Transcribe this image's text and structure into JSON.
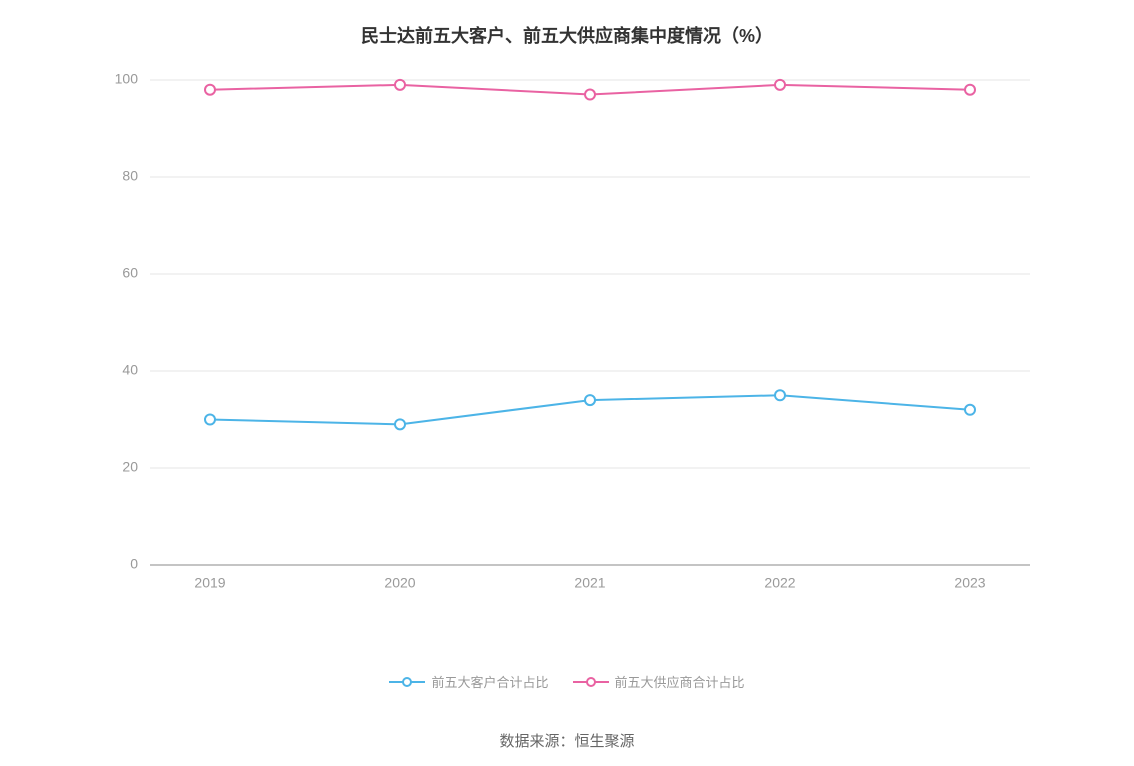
{
  "chart": {
    "type": "line",
    "title": "民士达前五大客户、前五大供应商集中度情况（%）",
    "title_fontsize": 18,
    "title_color": "#333333",
    "background_color": "#ffffff",
    "grid_color": "#e6e6e6",
    "axis_line_color": "#888888",
    "axis_label_color": "#999999",
    "axis_label_fontsize": 14,
    "ylim": [
      0,
      100
    ],
    "ytick_step": 20,
    "yticks": [
      0,
      20,
      40,
      60,
      80,
      100
    ],
    "categories": [
      "2019",
      "2020",
      "2021",
      "2022",
      "2023"
    ],
    "series": [
      {
        "name": "前五大客户合计占比",
        "color": "#4cb4e7",
        "marker_fill": "#ffffff",
        "marker_radius": 5,
        "line_width": 2,
        "values": [
          30,
          29,
          34,
          35,
          32
        ]
      },
      {
        "name": "前五大供应商合计占比",
        "color": "#e962a2",
        "marker_fill": "#ffffff",
        "marker_radius": 5,
        "line_width": 2,
        "values": [
          98,
          99,
          97,
          99,
          98
        ]
      }
    ]
  },
  "legend": {
    "label_color": "#999999",
    "label_fontsize": 13
  },
  "source": {
    "label": "数据来源：恒生聚源",
    "color": "#666666",
    "fontsize": 15
  }
}
